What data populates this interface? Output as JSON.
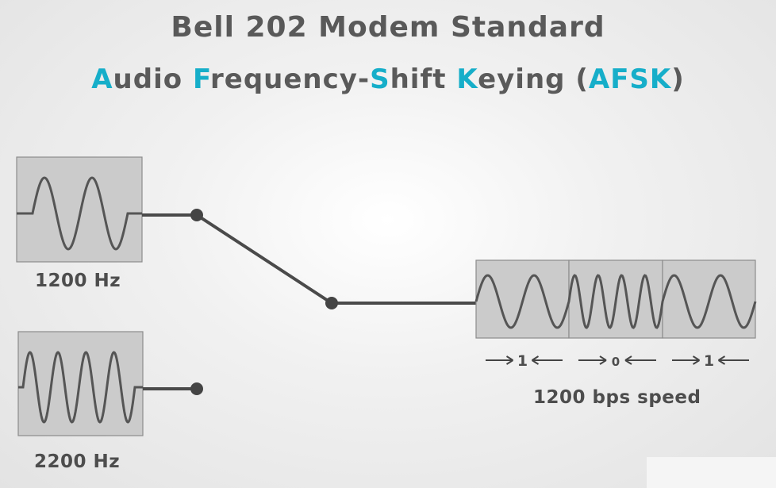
{
  "title": "Bell 202 Modem Standard",
  "subtitle": {
    "parts": [
      {
        "text": "A",
        "accent": true
      },
      {
        "text": "udio ",
        "accent": false
      },
      {
        "text": "F",
        "accent": true
      },
      {
        "text": "requency-",
        "accent": false
      },
      {
        "text": "S",
        "accent": true
      },
      {
        "text": "hift ",
        "accent": false
      },
      {
        "text": "K",
        "accent": true
      },
      {
        "text": "eying (",
        "accent": false
      },
      {
        "text": "AFSK",
        "accent": true
      },
      {
        "text": ")",
        "accent": false
      }
    ]
  },
  "signals": {
    "low_freq_label": "1200 Hz",
    "high_freq_label": "2200 Hz"
  },
  "output": {
    "bits": [
      "1",
      "0",
      "1"
    ],
    "speed_label": "1200 bps speed"
  },
  "colors": {
    "accent": "#16aec9",
    "text": "#595959",
    "line": "#4a4a4a",
    "box_fill": "#cbcbcb",
    "box_stroke": "#8c8c8c"
  }
}
